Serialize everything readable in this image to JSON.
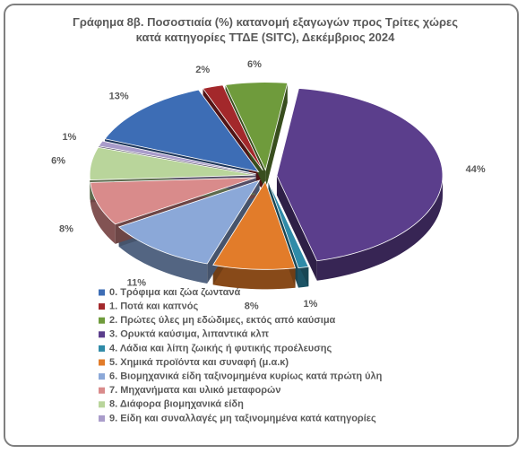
{
  "chart_data": {
    "type": "pie",
    "title": "Γράφημα 8β. Ποσοστιαία (%) κατανομή εξαγωγών προς Τρίτες χώρες κατά κατηγορίες ΤΤΔΕ (SITC),  Δεκέμβριος 2024",
    "categories": [
      "0. Τρόφιμα και ζώα ζωντανά",
      "1. Ποτά και καπνός",
      "2. Πρώτες ύλες μη εδώδιμες, εκτός από καύσιμα",
      "3. Ορυκτά καύσιμα, λιπαντικά κλπ",
      "4. Λάδια και λίπη ζωικής ή φυτικής προέλευσης",
      "5. Χημικά προϊόντα και συναφή (μ.α.κ)",
      "6. Βιομηχανικά είδη ταξινομημένα κυρίως κατά πρώτη ύλη",
      "7. Μηχανήματα και υλικό μεταφορών",
      "8. Διάφορα βιομηχανικά είδη",
      "9. Είδη και συναλλαγές μη ταξινομημένα κατά  κατηγορίες"
    ],
    "values": [
      13,
      2,
      6,
      44,
      1,
      8,
      11,
      8,
      6,
      1
    ],
    "value_labels": [
      "13%",
      "2%",
      "6%",
      "44%",
      "1%",
      "8%",
      "11%",
      "8%",
      "6%",
      "1%"
    ],
    "colors": [
      "#3d6db5",
      "#a3282b",
      "#6f9b3c",
      "#5b3e8c",
      "#2f8ba8",
      "#e27c2a",
      "#8ba8d8",
      "#d98b8b",
      "#b9d59b",
      "#a99cca"
    ],
    "legend": "bottom"
  }
}
